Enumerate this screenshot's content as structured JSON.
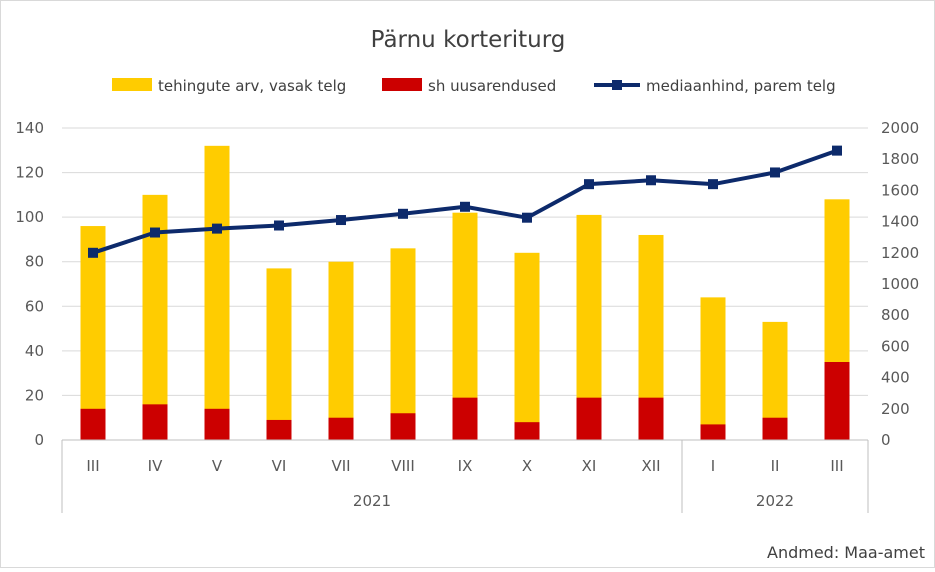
{
  "chart_data": {
    "type": "bar",
    "title": "Pärnu korteriturg",
    "source": "Andmed: Maa-amet",
    "categories": [
      "III",
      "IV",
      "V",
      "VI",
      "VII",
      "VIII",
      "IX",
      "X",
      "XI",
      "XII",
      "I",
      "II",
      "III"
    ],
    "year_groups": [
      {
        "label": "2021",
        "count": 10
      },
      {
        "label": "2022",
        "count": 3
      }
    ],
    "series": [
      {
        "name": "tehingute arv, vasak telg",
        "type": "bar",
        "axis": "left",
        "color": "#FFCC00",
        "values": [
          96,
          110,
          132,
          77,
          80,
          86,
          102,
          84,
          101,
          92,
          64,
          53,
          108
        ]
      },
      {
        "name": "sh uusarendused",
        "type": "bar",
        "axis": "left",
        "color": "#CC0000",
        "values": [
          14,
          16,
          14,
          9,
          10,
          12,
          19,
          8,
          19,
          19,
          7,
          10,
          35
        ]
      },
      {
        "name": "mediaanhind, parem telg",
        "type": "line",
        "axis": "right",
        "color": "#0D2A6B",
        "values": [
          1200,
          1330,
          1355,
          1375,
          1410,
          1450,
          1495,
          1425,
          1640,
          1665,
          1640,
          1715,
          1855
        ]
      }
    ],
    "y_left": {
      "min": 0,
      "max": 140,
      "ticks": [
        0,
        20,
        40,
        60,
        80,
        100,
        120,
        140
      ]
    },
    "y_right": {
      "min": 0,
      "max": 2000,
      "ticks": [
        0,
        200,
        400,
        600,
        800,
        1000,
        1200,
        1400,
        1600,
        1800,
        2000
      ]
    },
    "grid": true,
    "legend_position": "top"
  }
}
